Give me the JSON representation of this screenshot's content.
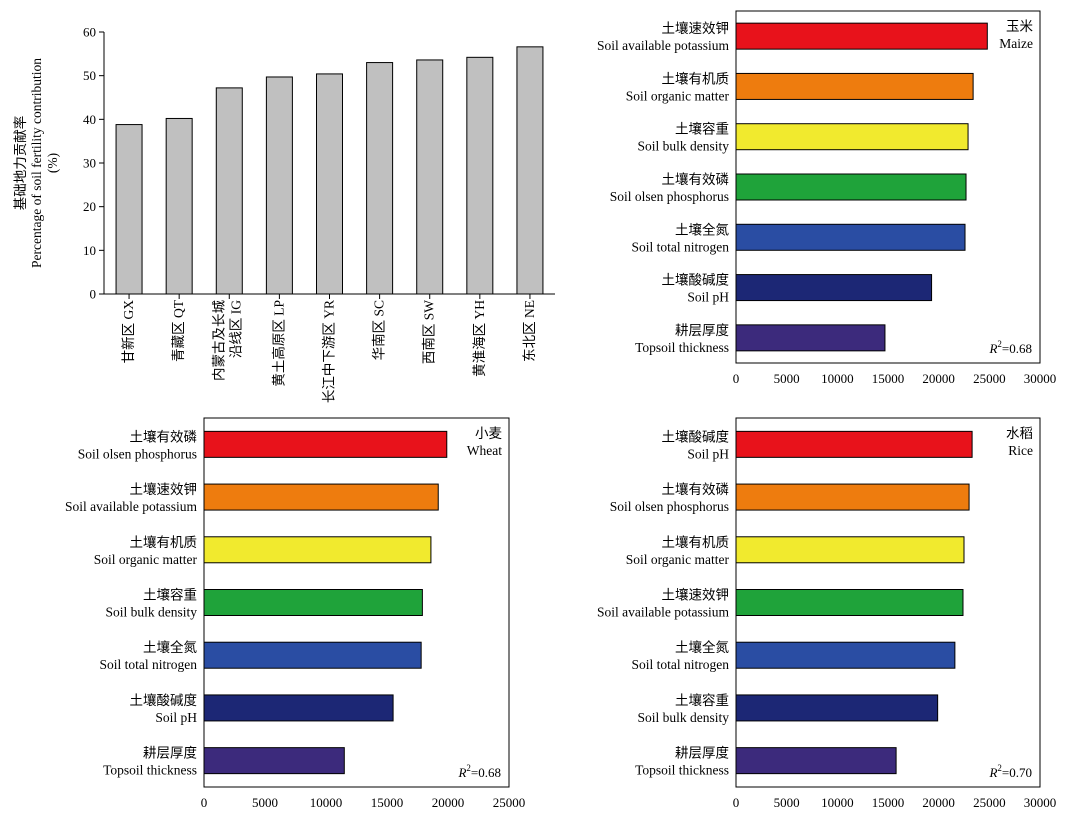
{
  "chart_data": [
    {
      "type": "bar",
      "orientation": "vertical",
      "ylabel_lines": [
        "基础地力贡献率",
        "Percentage of soil fertility contribution",
        "(%)"
      ],
      "categories": [
        {
          "zh": "甘新区",
          "code": "GX"
        },
        {
          "zh": "青藏区",
          "code": "QT"
        },
        {
          "zh": "内蒙古及长城沿线区",
          "code": "IG"
        },
        {
          "zh": "黄土高原区",
          "code": "LP"
        },
        {
          "zh": "长江中下游区",
          "code": "YR"
        },
        {
          "zh": "华南区",
          "code": "SC"
        },
        {
          "zh": "西南区",
          "code": "SW"
        },
        {
          "zh": "黄淮海区",
          "code": "YH"
        },
        {
          "zh": "东北区",
          "code": "NE"
        }
      ],
      "values": [
        38.8,
        40.2,
        47.2,
        49.7,
        50.4,
        53.0,
        53.6,
        54.2,
        56.6
      ],
      "ylim": [
        0,
        60
      ],
      "yticks": [
        "0",
        "10",
        "20",
        "30",
        "40",
        "50",
        "60"
      ],
      "grid": false,
      "bar_color": "#c0c0c0"
    },
    {
      "type": "bar",
      "orientation": "horizontal",
      "title_zh": "玉米",
      "title_en": "Maize",
      "r2_label": "R",
      "r2_sup": "2",
      "r2_value": "=0.68",
      "categories": [
        {
          "zh": "土壤速效钾",
          "en": "Soil available potassium"
        },
        {
          "zh": "土壤有机质",
          "en": "Soil organic matter"
        },
        {
          "zh": "土壤容重",
          "en": "Soil bulk density"
        },
        {
          "zh": "土壤有效磷",
          "en": "Soil olsen phosphorus"
        },
        {
          "zh": "土壤全氮",
          "en": "Soil total nitrogen"
        },
        {
          "zh": "土壤酸碱度",
          "en": "Soil pH"
        },
        {
          "zh": "耕层厚度",
          "en": "Topsoil thickness"
        }
      ],
      "values": [
        24800,
        23400,
        22900,
        22700,
        22600,
        19300,
        14700
      ],
      "colors": [
        "#e8121b",
        "#ee7c0e",
        "#f1ea2e",
        "#1fa33a",
        "#2a4da3",
        "#1c2775",
        "#3c2a7c"
      ],
      "xlim": [
        0,
        30000
      ],
      "xticks": [
        "0",
        "5000",
        "10000",
        "15000",
        "20000",
        "25000",
        "30000"
      ]
    },
    {
      "type": "bar",
      "orientation": "horizontal",
      "title_zh": "小麦",
      "title_en": "Wheat",
      "r2_label": "R",
      "r2_sup": "2",
      "r2_value": "=0.68",
      "categories": [
        {
          "zh": "土壤有效磷",
          "en": "Soil olsen phosphorus"
        },
        {
          "zh": "土壤速效钾",
          "en": "Soil available potassium"
        },
        {
          "zh": "土壤有机质",
          "en": "Soil organic matter"
        },
        {
          "zh": "土壤容重",
          "en": "Soil bulk density"
        },
        {
          "zh": "土壤全氮",
          "en": "Soil total nitrogen"
        },
        {
          "zh": "土壤酸碱度",
          "en": "Soil pH"
        },
        {
          "zh": "耕层厚度",
          "en": "Topsoil thickness"
        }
      ],
      "values": [
        19900,
        19200,
        18600,
        17900,
        17800,
        15500,
        11500
      ],
      "colors": [
        "#e8121b",
        "#ee7c0e",
        "#f1ea2e",
        "#1fa33a",
        "#2a4da3",
        "#1c2775",
        "#3c2a7c"
      ],
      "xlim": [
        0,
        25000
      ],
      "xticks": [
        "0",
        "5000",
        "10000",
        "15000",
        "20000",
        "25000"
      ]
    },
    {
      "type": "bar",
      "orientation": "horizontal",
      "title_zh": "水稻",
      "title_en": "Rice",
      "r2_label": "R",
      "r2_sup": "2",
      "r2_value": "=0.70",
      "categories": [
        {
          "zh": "土壤酸碱度",
          "en": "Soil pH"
        },
        {
          "zh": "土壤有效磷",
          "en": "Soil olsen phosphorus"
        },
        {
          "zh": "土壤有机质",
          "en": "Soil organic matter"
        },
        {
          "zh": "土壤速效钾",
          "en": "Soil available potassium"
        },
        {
          "zh": "土壤全氮",
          "en": "Soil total nitrogen"
        },
        {
          "zh": "土壤容重",
          "en": "Soil bulk density"
        },
        {
          "zh": "耕层厚度",
          "en": "Topsoil thickness"
        }
      ],
      "values": [
        23300,
        23000,
        22500,
        22400,
        21600,
        19900,
        15800
      ],
      "colors": [
        "#e8121b",
        "#ee7c0e",
        "#f1ea2e",
        "#1fa33a",
        "#2a4da3",
        "#1c2775",
        "#3c2a7c"
      ],
      "xlim": [
        0,
        30000
      ],
      "xticks": [
        "0",
        "5000",
        "10000",
        "15000",
        "20000",
        "25000",
        "30000"
      ]
    }
  ]
}
